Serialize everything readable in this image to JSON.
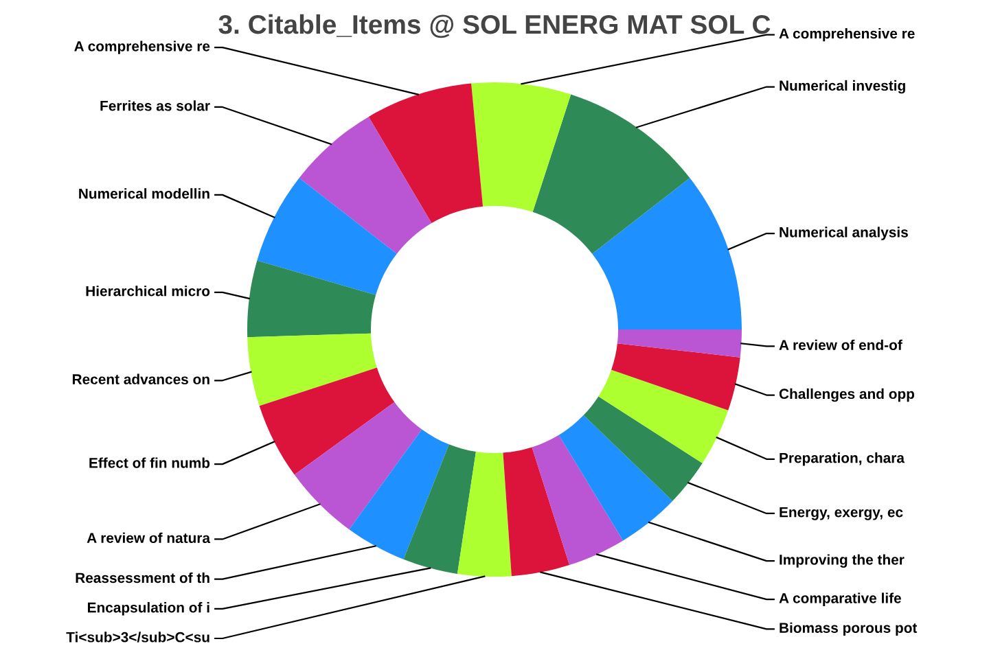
{
  "chart_data": {
    "type": "donut",
    "title": "3. Citable_Items @ SOL ENERG MAT SOL C",
    "categories": [
      "Numerical analysis",
      "Numerical investig",
      "A comprehensive re",
      "A comprehensive re",
      "Ferrites as solar",
      "Numerical modellin",
      "Hierarchical micro",
      "Recent advances on",
      "Effect of fin numb",
      "A review of natura",
      "Reassessment of th",
      "Encapsulation of i",
      "Ti<sub>3</sub>C<su",
      "Biomass porous pot",
      "A comparative life",
      "Improving the ther",
      "Energy, exergy, ec",
      "Preparation, chara",
      "Challenges and opp",
      "A review of end-of"
    ],
    "values": [
      10.5,
      9.5,
      6.5,
      7,
      6,
      6,
      5,
      4.5,
      5,
      5,
      4,
      3.6,
      3.5,
      3.8,
      3.8,
      4.1,
      3.1,
      3.8,
      3.5,
      1.8
    ],
    "colors": [
      "#1e90ff",
      "#2e8b57",
      "#adff2f",
      "#dc143c",
      "#ba55d3",
      "#1e90ff",
      "#2e8b57",
      "#adff2f",
      "#dc143c",
      "#ba55d3",
      "#1e90ff",
      "#2e8b57",
      "#adff2f",
      "#dc143c",
      "#ba55d3",
      "#1e90ff",
      "#2e8b57",
      "#adff2f",
      "#dc143c",
      "#ba55d3"
    ],
    "legend": false
  }
}
